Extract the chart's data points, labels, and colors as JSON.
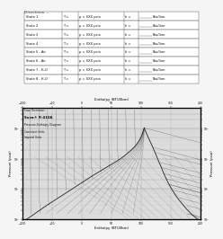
{
  "title": "Directions ...",
  "table_rows": [
    [
      "State 1",
      "T =",
      "p = XXX psia",
      "h =",
      "Btu/lbm"
    ],
    [
      "State 2",
      "T =",
      "p = XXX psia",
      "h =",
      "Btu/lbm"
    ],
    [
      "State 3",
      "T =",
      "p = XXX psia",
      "h =",
      "Btu/lbm"
    ],
    [
      "State 4",
      "T =",
      "p = XXX psia",
      "h =",
      "Btu/lbm"
    ],
    [
      "State 5 - Air",
      "T =",
      "p = XXX psia",
      "h =",
      "Btu/lbm"
    ],
    [
      "State 6 - Air",
      "T =",
      "p = XXX psia",
      "h =",
      "Btu/lbm"
    ],
    [
      "State 7 - H₂O",
      "T =",
      "p = XXX psia",
      "h =",
      "Btu/lbm"
    ],
    [
      "State 8 - H₂O",
      "T =",
      "p = XXX psia",
      "h =",
      "Btu/lbm"
    ]
  ],
  "chart_line1": "Suva Thermistor",
  "chart_line2": "Suva® R-410A",
  "chart_line3": "Pressure-Enthalpy Diagram",
  "chart_line4": "Consistent Units",
  "chart_line5": "Imperial Units",
  "xlabel_top": "Enthalpy (BTU/lbm)",
  "xlabel_bottom": "Enthalpy (BTU/lbm)",
  "ylabel_left": "Pressure (psia)",
  "ylabel_right": "Pressure (psia)",
  "bg_color": "#f5f5f5",
  "chart_bg": "#dcdcdc",
  "grid_color": "#888888",
  "curve_color": "#222222",
  "table_border": "#666666"
}
